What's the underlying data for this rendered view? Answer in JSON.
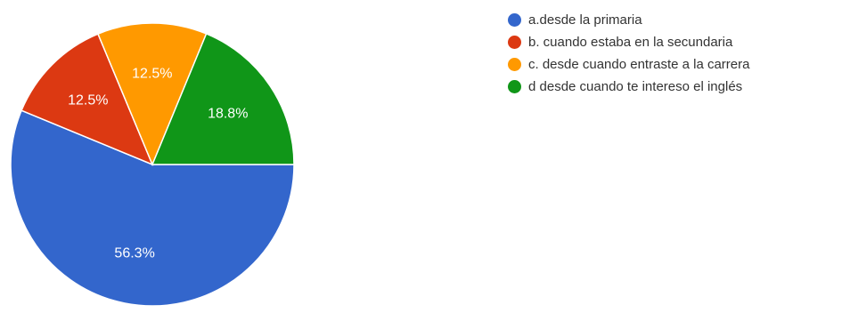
{
  "chart_data": {
    "type": "pie",
    "title": "",
    "slices": [
      {
        "label": "a.desde la primaria",
        "value": 56.3,
        "value_label": "56.3%",
        "color": "#3366cc"
      },
      {
        "label": "b. cuando estaba en la secundaria",
        "value": 12.5,
        "value_label": "12.5%",
        "color": "#dc3912"
      },
      {
        "label": "c. desde cuando entraste a la carrera",
        "value": 12.5,
        "value_label": "12.5%",
        "color": "#ff9900"
      },
      {
        "label": "d desde cuando te intereso el inglés",
        "value": 18.8,
        "value_label": "18.8%",
        "color": "#109618"
      }
    ],
    "legend_position": "right",
    "start_direction": "right",
    "slice_order": "clockwise"
  }
}
